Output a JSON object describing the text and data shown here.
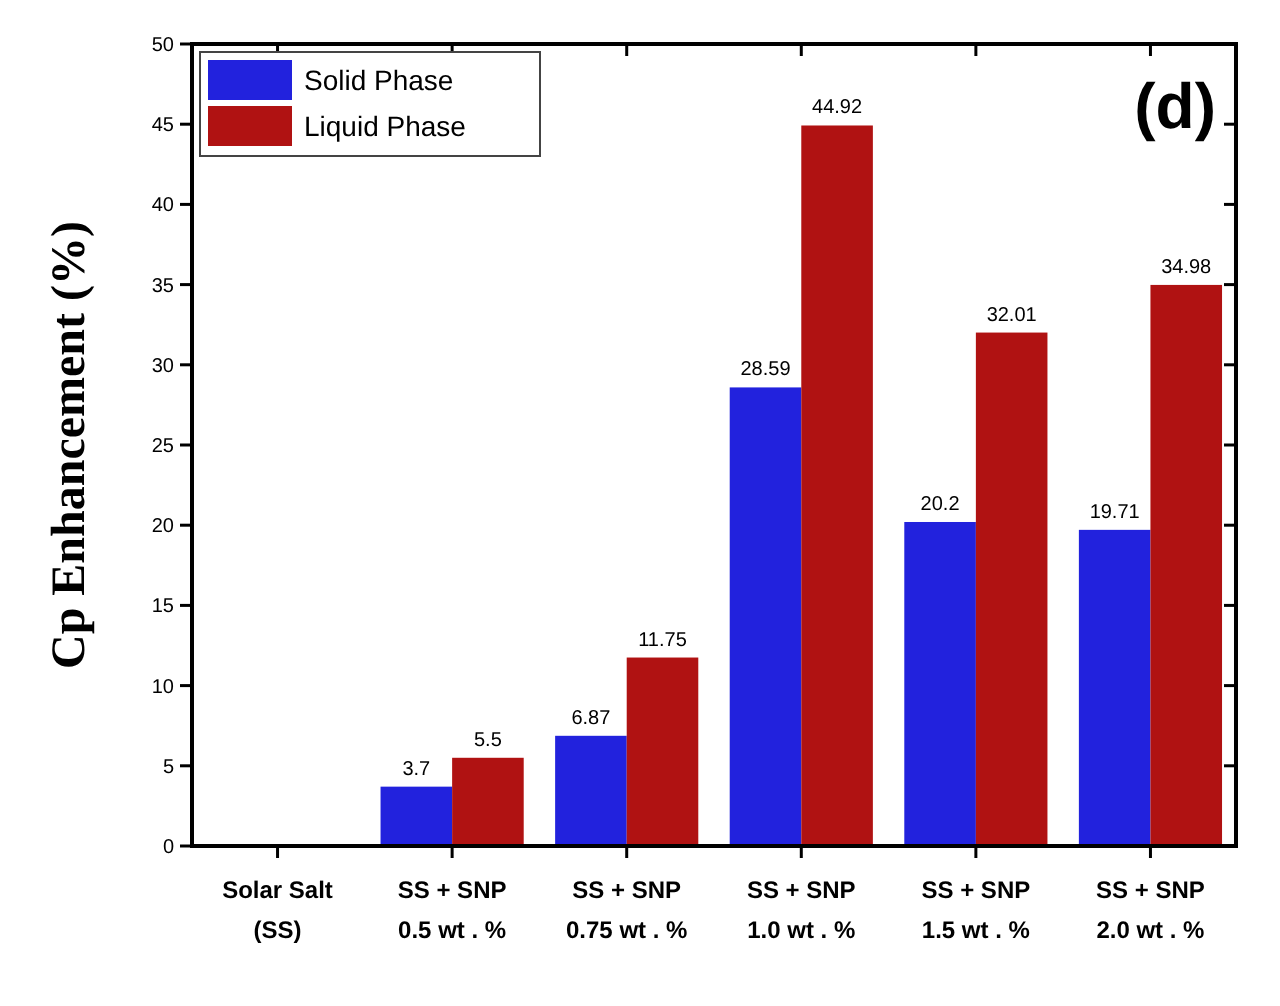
{
  "chart_data": {
    "type": "bar",
    "ylabel": "Cp Enhancement (%)",
    "categories": [
      "Solar Salt\n(SS)",
      "SS + SNP\n0.5 wt . %",
      "SS + SNP\n0.75 wt . %",
      "SS + SNP\n1.0 wt . %",
      "SS + SNP\n1.5 wt . %",
      "SS + SNP\n2.0 wt . %"
    ],
    "series": [
      {
        "name": "Solid Phase",
        "color": "#2222dd",
        "values": [
          0,
          3.7,
          6.87,
          28.59,
          20.2,
          19.71
        ],
        "value_labels": [
          null,
          "3.7",
          "6.87",
          "28.59",
          "20.2",
          "19.71"
        ]
      },
      {
        "name": "Liquid Phase",
        "color": "#b01212",
        "values": [
          0,
          5.5,
          11.75,
          44.92,
          32.01,
          34.98
        ],
        "value_labels": [
          null,
          "5.5",
          "11.75",
          "44.92",
          "32.01",
          "34.98"
        ]
      }
    ],
    "ylim": [
      0,
      50
    ],
    "yticks": [
      0,
      5,
      10,
      15,
      20,
      25,
      30,
      35,
      40,
      45,
      50
    ],
    "legend": "top left",
    "annotations": [
      "(d)"
    ]
  }
}
